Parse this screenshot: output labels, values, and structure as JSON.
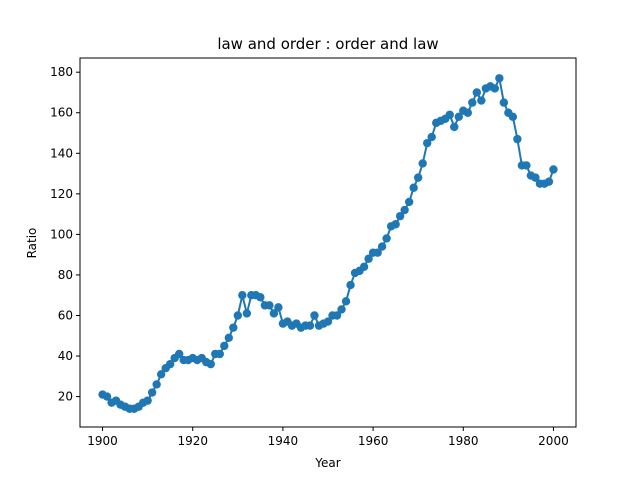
{
  "chart_data": {
    "type": "line",
    "title": "law and order : order and law",
    "xlabel": "Year",
    "ylabel": "Ratio",
    "xlim": [
      1895,
      2005
    ],
    "ylim": [
      5,
      187
    ],
    "xticks": [
      1900,
      1920,
      1940,
      1960,
      1980,
      2000
    ],
    "yticks": [
      20,
      40,
      60,
      80,
      100,
      120,
      140,
      160,
      180
    ],
    "grid": false,
    "legend": "none",
    "color": "#1f77b4",
    "markers": true,
    "series": [
      {
        "x": [
          1900,
          1901,
          1902,
          1903,
          1904,
          1905,
          1906,
          1907,
          1908,
          1909,
          1910,
          1911,
          1912,
          1913,
          1914,
          1915,
          1916,
          1917,
          1918,
          1919,
          1920,
          1921,
          1922,
          1923,
          1924,
          1925,
          1926,
          1927,
          1928,
          1929,
          1930,
          1931,
          1932,
          1933,
          1934,
          1935,
          1936,
          1937,
          1938,
          1939,
          1940,
          1941,
          1942,
          1943,
          1944,
          1945,
          1946,
          1947,
          1948,
          1949,
          1950,
          1951,
          1952,
          1953,
          1954,
          1955,
          1956,
          1957,
          1958,
          1959,
          1960,
          1961,
          1962,
          1963,
          1964,
          1965,
          1966,
          1967,
          1968,
          1969,
          1970,
          1971,
          1972,
          1973,
          1974,
          1975,
          1976,
          1977,
          1978,
          1979,
          1980,
          1981,
          1982,
          1983,
          1984,
          1985,
          1986,
          1987,
          1988,
          1989,
          1990,
          1991,
          1992,
          1993,
          1994,
          1995,
          1996,
          1997,
          1998,
          1999,
          2000
        ],
        "y": [
          21,
          20,
          17,
          18,
          16,
          15,
          14,
          14,
          15,
          17,
          18,
          22,
          26,
          31,
          34,
          36,
          39,
          41,
          38,
          38,
          39,
          38,
          39,
          37,
          36,
          41,
          41,
          45,
          49,
          54,
          60,
          70,
          61,
          70,
          70,
          69,
          65,
          65,
          61,
          64,
          56,
          57,
          55,
          56,
          54,
          55,
          55,
          60,
          55,
          56,
          57,
          60,
          60,
          63,
          67,
          75,
          81,
          82,
          84,
          88,
          91,
          91,
          94,
          98,
          104,
          105,
          109,
          112,
          116,
          123,
          128,
          135,
          145,
          148,
          155,
          156,
          157,
          159,
          153,
          158,
          161,
          160,
          165,
          170,
          166,
          172,
          173,
          172,
          177,
          165,
          160,
          158,
          147,
          134,
          134,
          129,
          128,
          125,
          125,
          126,
          132
        ]
      }
    ]
  }
}
